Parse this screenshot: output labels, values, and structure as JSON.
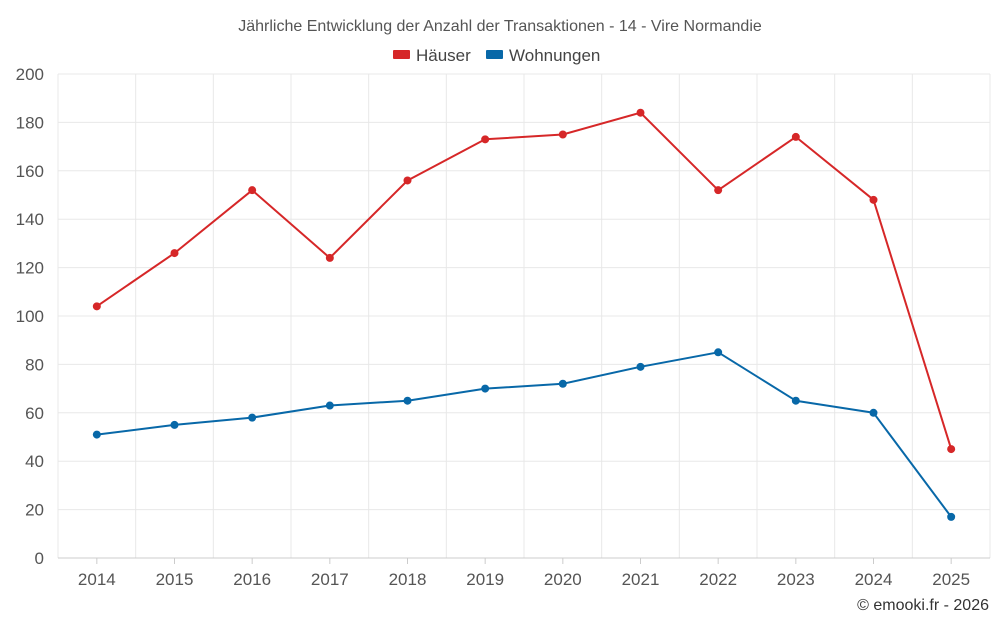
{
  "chart_data": {
    "type": "line",
    "title": "Jährliche Entwicklung der Anzahl der Transaktionen - 14 - Vire Normandie",
    "categories": [
      "2014",
      "2015",
      "2016",
      "2017",
      "2018",
      "2019",
      "2020",
      "2021",
      "2022",
      "2023",
      "2024",
      "2025"
    ],
    "series": [
      {
        "name": "Häuser",
        "color": "#d62728",
        "values": [
          104,
          126,
          152,
          124,
          156,
          173,
          175,
          184,
          152,
          174,
          148,
          45
        ]
      },
      {
        "name": "Wohnungen",
        "color": "#0868a8",
        "values": [
          51,
          55,
          58,
          63,
          65,
          70,
          72,
          79,
          85,
          65,
          60,
          17
        ]
      }
    ],
    "ylim": [
      0,
      200
    ],
    "yticks": [
      0,
      20,
      40,
      60,
      80,
      100,
      120,
      140,
      160,
      180,
      200
    ],
    "xlabel": "",
    "ylabel": "",
    "grid": true,
    "legend_position": "top-center"
  },
  "credit": "© emooki.fr - 2026"
}
